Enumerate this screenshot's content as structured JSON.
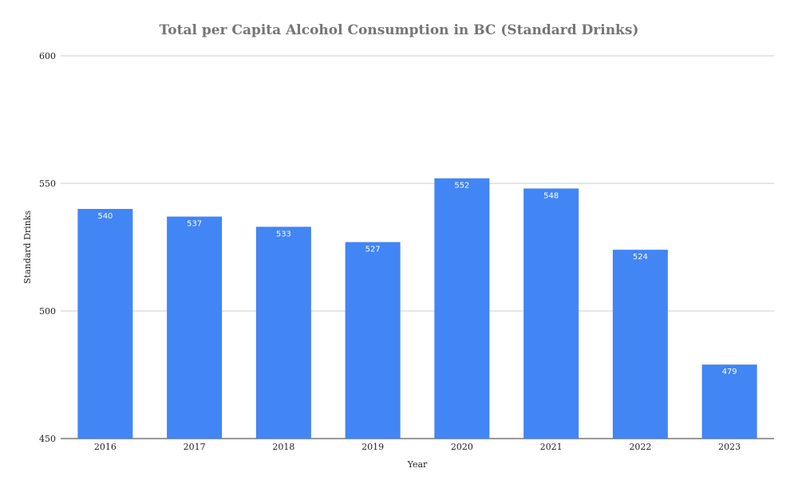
{
  "chart_data": {
    "type": "bar",
    "title": "Total per Capita Alcohol Consumption in BC (Standard Drinks)",
    "xlabel": "Year",
    "ylabel": "Standard Drinks",
    "categories": [
      "2016",
      "2017",
      "2018",
      "2019",
      "2020",
      "2021",
      "2022",
      "2023"
    ],
    "values": [
      540,
      537,
      533,
      527,
      552,
      548,
      524,
      479
    ],
    "data_labels": [
      "540",
      "537",
      "533",
      "527",
      "552",
      "548",
      "524",
      "479"
    ],
    "ylim": [
      450,
      600
    ],
    "yticks": [
      450,
      500,
      550,
      600
    ],
    "ytick_labels": [
      "450",
      "500",
      "550",
      "600"
    ],
    "grid": true,
    "legend": "none",
    "bar_color": "#4285f4",
    "grid_color": "#cccccc",
    "label_color": "#ffffff"
  }
}
